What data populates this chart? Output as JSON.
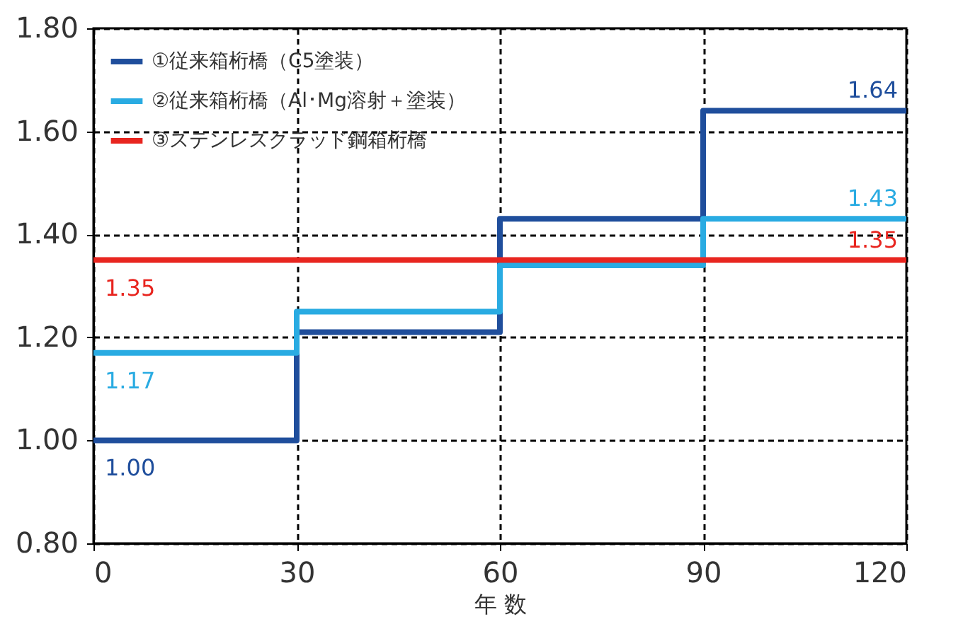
{
  "chart_data": {
    "type": "step",
    "xlabel": "年 数",
    "x": [
      0,
      30,
      60,
      90,
      120
    ],
    "series": [
      {
        "name": "①従来箱桁橋（C5塗装）",
        "color": "#1f4e9c",
        "values": [
          1.0,
          1.21,
          1.43,
          1.64,
          1.64
        ],
        "value_labels": [
          "1.00",
          null,
          null,
          null,
          "1.64"
        ]
      },
      {
        "name": "②従来箱桁橋（Al･Mg溶射＋塗装）",
        "color": "#29abe2",
        "values": [
          1.17,
          1.25,
          1.34,
          1.43,
          1.43
        ],
        "value_labels": [
          "1.17",
          null,
          null,
          null,
          "1.43"
        ]
      },
      {
        "name": "③ステンレスクラッド鋼箱桁橋",
        "color": "#e8251f",
        "values": [
          1.35,
          1.35,
          1.35,
          1.35,
          1.35
        ],
        "value_labels": [
          "1.35",
          null,
          null,
          null,
          "1.35"
        ]
      }
    ],
    "xlim": [
      0,
      120
    ],
    "xticks": [
      0,
      30,
      60,
      90,
      120
    ],
    "ylim": [
      0.8,
      1.8
    ],
    "yticks": [
      {
        "value": 0.8,
        "label": "0.80"
      },
      {
        "value": 1.0,
        "label": "1.00"
      },
      {
        "value": 1.2,
        "label": "1.20"
      },
      {
        "value": 1.4,
        "label": "1.40"
      },
      {
        "value": 1.6,
        "label": "1.60"
      },
      {
        "value": 1.8,
        "label": "1.80"
      }
    ],
    "grid": true,
    "legend": "top left",
    "line_style": "solid",
    "marker": "none"
  }
}
